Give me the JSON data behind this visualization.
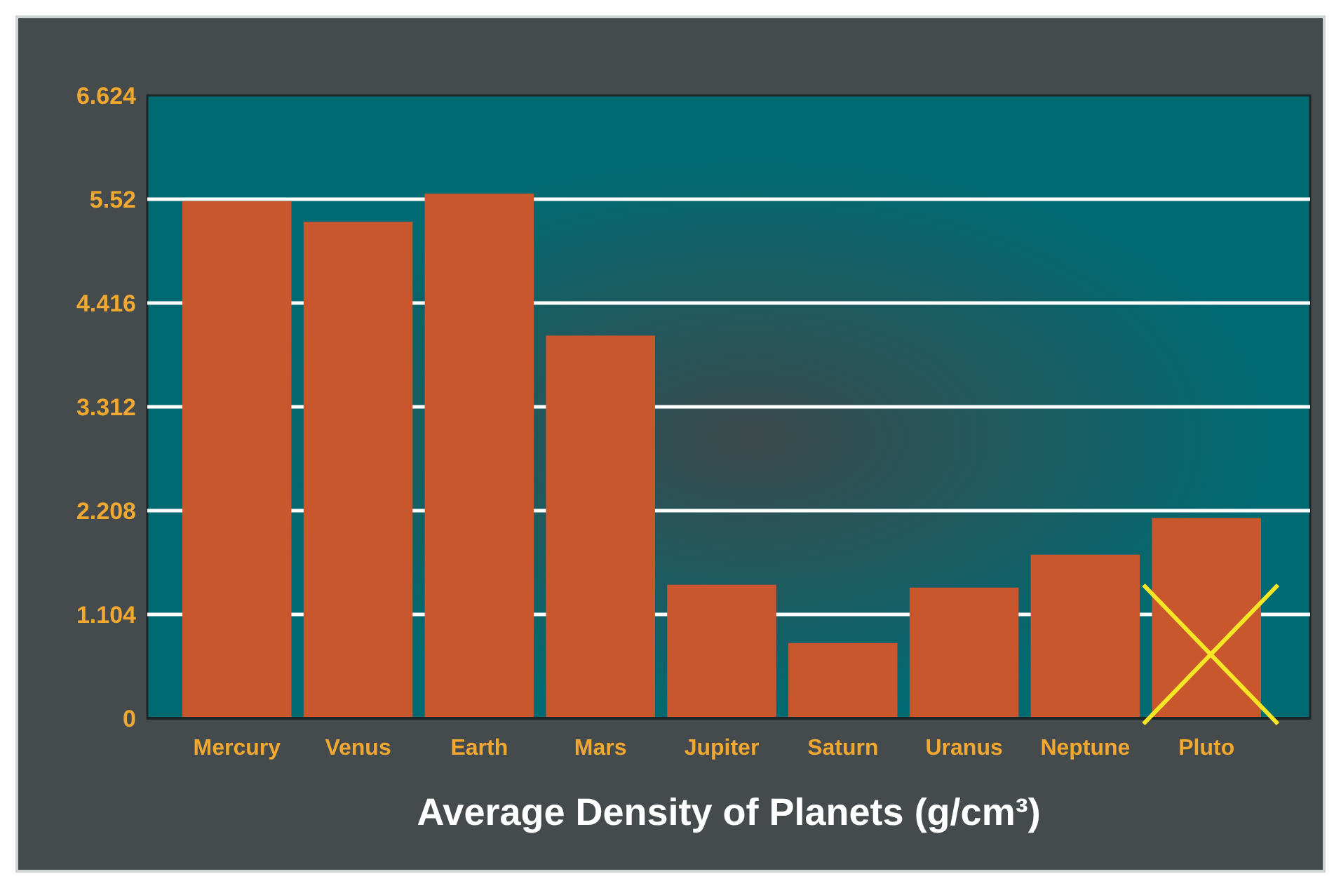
{
  "chart_data": {
    "type": "bar",
    "xlabel": "Average Density of Planets (g/cm³)",
    "categories": [
      "Mercury",
      "Venus",
      "Earth",
      "Mars",
      "Jupiter",
      "Saturn",
      "Uranus",
      "Neptune",
      "Pluto"
    ],
    "values": [
      5.5,
      5.28,
      5.58,
      4.07,
      1.42,
      0.8,
      1.39,
      1.74,
      2.13
    ],
    "color": "#c8572e",
    "ylim": [
      0,
      6.624
    ],
    "yticks": [
      0,
      1.104,
      2.208,
      3.312,
      4.416,
      5.52,
      6.624
    ],
    "grid": "y"
  }
}
